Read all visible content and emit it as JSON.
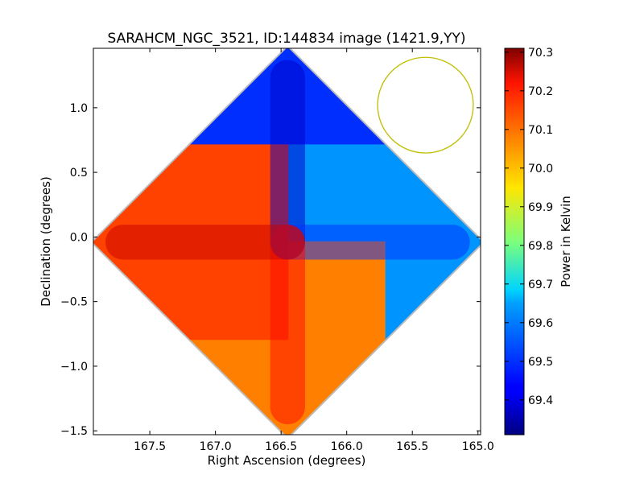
{
  "chart_data": {
    "type": "heatmap",
    "title": "SARAHCM_NGC_3521, ID:144834 image (1421.9,YY)",
    "xlabel": "Right Ascension (degrees)",
    "ylabel": "Declination (degrees)",
    "xlim": [
      167.93,
      164.98
    ],
    "ylim": [
      -1.53,
      1.46
    ],
    "xticks": [
      167.5,
      167.0,
      166.5,
      166.0,
      165.5,
      165.0
    ],
    "xtick_labels": [
      "167.5",
      "167.0",
      "166.5",
      "166.0",
      "165.5",
      "165.0"
    ],
    "yticks": [
      1.0,
      0.5,
      0.0,
      -0.5,
      -1.0,
      -1.5
    ],
    "ytick_labels": [
      "1.0",
      "0.5",
      "0.0",
      "−0.5",
      "−1.0",
      "−1.5"
    ],
    "colorbar": {
      "label": "Power in Kelvin",
      "range": [
        69.31,
        70.31
      ],
      "colormap": "jet",
      "ticks": [
        70.3,
        70.2,
        70.1,
        70.0,
        69.9,
        69.8,
        69.7,
        69.6,
        69.5,
        69.4
      ],
      "tick_labels": [
        "70.3",
        "70.2",
        "70.1",
        "70.0",
        "69.9",
        "69.8",
        "69.7",
        "69.6",
        "69.5",
        "69.4"
      ]
    },
    "map_center": {
      "ra": 166.45,
      "dec": -0.04
    },
    "map_half_diagonal_deg": 1.5,
    "lobes": [
      {
        "name": "north",
        "dir": [
          0,
          1
        ],
        "value": 69.48
      },
      {
        "name": "east",
        "dir": [
          1,
          0
        ],
        "value": 69.58
      },
      {
        "name": "south",
        "dir": [
          0,
          -1
        ],
        "value": 70.06
      },
      {
        "name": "west",
        "dir": [
          -1,
          0
        ],
        "value": 70.12
      }
    ],
    "beam_circle": {
      "ra": 165.4,
      "dec": 1.02,
      "radius_deg": 0.37,
      "color": "#bfbf00"
    }
  }
}
